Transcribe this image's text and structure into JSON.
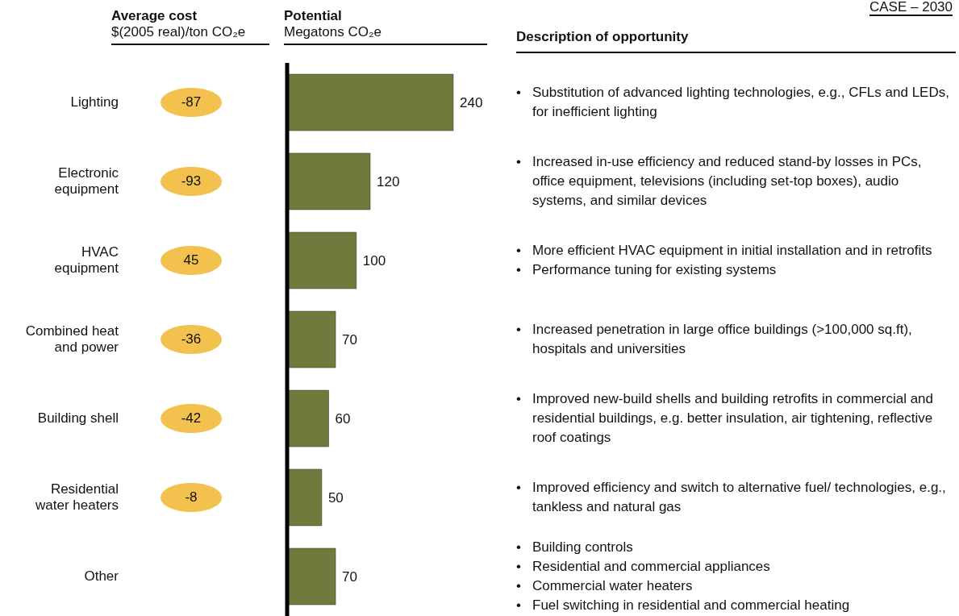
{
  "chart_data": [
    {
      "type": "other",
      "title": "Average cost",
      "subtitle": "$(2005 real)/ton CO₂e",
      "categories": [
        "Lighting",
        "Electronic equipment",
        "HVAC equipment",
        "Combined heat and power",
        "Building shell",
        "Residential water heaters",
        "Other"
      ],
      "values": [
        -87,
        -93,
        45,
        -36,
        -42,
        -8,
        null
      ],
      "color": "#f2c14e",
      "data_labels": true
    },
    {
      "type": "bar",
      "orientation": "horizontal",
      "title": "Potential",
      "subtitle": "Megatons CO₂e",
      "categories": [
        null,
        null,
        null,
        null,
        null,
        null,
        null
      ],
      "values": [
        240,
        120,
        100,
        70,
        60,
        50,
        70
      ],
      "color": "#6f7a3c",
      "data_labels": true
    },
    {
      "type": "other",
      "title": "Description of opportunity",
      "annotations": [
        "CASE – 2030",
        "• Substitution of advanced lighting technologies, e.g., CFLs and LEDs, for inefficient lighting",
        "• Increased in-use efficiency and reduced stand-by losses in PCs, office equipment, televisions (including set-top boxes), audio systems, and similar devices",
        "• More efficient HVAC equipment in initial installation and in retrofits\n• Performance tuning for existing systems",
        "• Increased penetration in large office buildings (>100,000 sq.ft), hospitals and universities",
        "• Improved new-build shells and building retrofits in commercial and residential buildings, e.g. better insulation, air tightening, reflective roof coatings",
        "• Improved efficiency and switch to alternative fuel/ technologies, e.g., tankless and natural gas",
        "• Building controls\n• Residential and commercial appliances\n• Commercial water heaters\n• Fuel switching in residential and commercial heating"
      ]
    }
  ]
}
